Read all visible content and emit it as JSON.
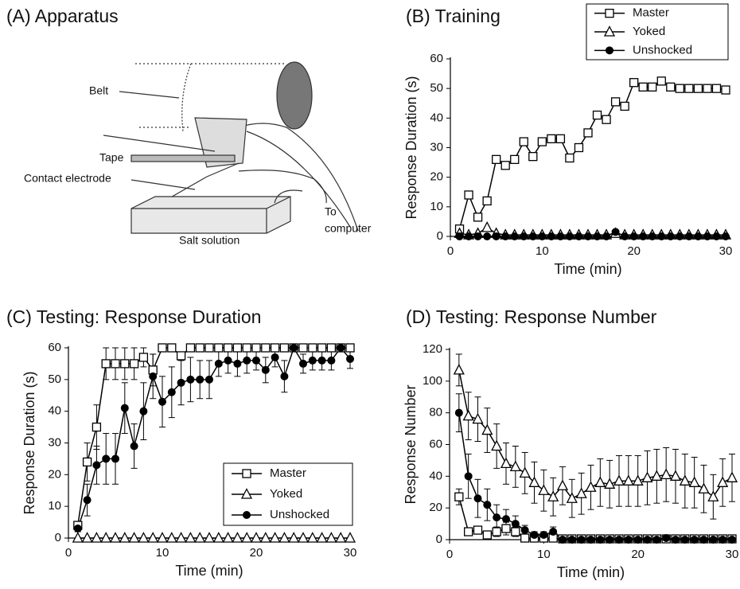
{
  "diagram": {
    "title": "(A) Apparatus",
    "labels": [
      "Belt",
      "Tape",
      "Contact electrode",
      "To",
      "computer",
      "Salt solution"
    ]
  },
  "chart_data": [
    {
      "type": "line",
      "title": "(B) Training",
      "x_label": "Time (min)",
      "y_label": "Response Duration (s)",
      "x": [
        1,
        2,
        3,
        4,
        5,
        6,
        7,
        8,
        9,
        10,
        11,
        12,
        13,
        14,
        15,
        16,
        17,
        18,
        19,
        20,
        21,
        22,
        23,
        24,
        25,
        26,
        27,
        28,
        29,
        30
      ],
      "series": [
        {
          "name": "Master",
          "color": "#000000",
          "marker": "square",
          "values": [
            2.5,
            14,
            6.5,
            12,
            26,
            24,
            26,
            32,
            27,
            32,
            33,
            33,
            26.5,
            30,
            35,
            41,
            39.5,
            45.5,
            44,
            52,
            50.5,
            50.5,
            52.5,
            50.5,
            50,
            50,
            50,
            50,
            50,
            49.5
          ]
        },
        {
          "name": "Yoked",
          "color": "#000000",
          "marker": "triangle",
          "values": [
            1,
            0.5,
            1,
            3,
            1,
            0.5,
            0.5,
            0.5,
            0.5,
            0.5,
            0.5,
            0.5,
            0.5,
            0.5,
            0.5,
            0.5,
            0.5,
            1,
            0.5,
            0.5,
            0.5,
            0.5,
            0.5,
            0.5,
            0.5,
            0.5,
            0.5,
            0.5,
            0.5,
            0.5
          ]
        },
        {
          "name": "Unshocked",
          "color": "#000000",
          "marker": "circle",
          "values": [
            0,
            0,
            0,
            0,
            0,
            0,
            0,
            0,
            0,
            0,
            0,
            0,
            0,
            0,
            0,
            0,
            0,
            1.5,
            0,
            0,
            0,
            0,
            0,
            0,
            0,
            0,
            0,
            0,
            0,
            0
          ]
        }
      ],
      "xlim": [
        0,
        30
      ],
      "xticks": [
        0,
        10,
        20,
        30
      ],
      "ylim": [
        0,
        60
      ],
      "yticks": [
        0,
        10,
        20,
        30,
        40,
        50,
        60
      ],
      "grid": false,
      "legend": "upper right"
    },
    {
      "type": "line",
      "title": "(C) Testing: Response Duration",
      "x_label": "Time (min)",
      "y_label": "Response Duration (s)",
      "x": [
        1,
        2,
        3,
        4,
        5,
        6,
        7,
        8,
        9,
        10,
        11,
        12,
        13,
        14,
        15,
        16,
        17,
        18,
        19,
        20,
        21,
        22,
        23,
        24,
        25,
        26,
        27,
        28,
        29,
        30
      ],
      "series": [
        {
          "name": "Master",
          "color": "#000000",
          "marker": "square",
          "values": [
            4,
            24,
            35,
            55,
            55,
            55,
            55,
            57,
            53,
            60,
            60,
            57.5,
            60,
            60,
            60,
            60,
            60,
            60,
            60,
            60,
            60,
            60,
            60,
            60,
            60,
            60,
            60,
            60,
            60,
            60
          ],
          "errors": [
            1,
            6,
            7,
            5,
            5,
            5,
            5,
            3,
            5,
            0,
            0,
            0,
            0,
            0,
            0,
            0,
            0,
            0,
            0,
            0,
            0,
            0,
            0,
            0,
            0,
            0,
            0,
            0,
            0,
            0
          ]
        },
        {
          "name": "Yoked",
          "color": "#000000",
          "marker": "triangle",
          "values": [
            0,
            0,
            0,
            0,
            0,
            0,
            0,
            0,
            0,
            0,
            0,
            0,
            0,
            0,
            0,
            0,
            0,
            0,
            0,
            0,
            0,
            0,
            0,
            0,
            0,
            0,
            0,
            0,
            0,
            0
          ],
          "errors": [
            0,
            0,
            0,
            0,
            0,
            0,
            0,
            0,
            0,
            0,
            0,
            0,
            0,
            0,
            0,
            0,
            0,
            0,
            0,
            0,
            0,
            0,
            0,
            0,
            0,
            0,
            0,
            0,
            0,
            0
          ]
        },
        {
          "name": "Unshocked",
          "color": "#000000",
          "marker": "circle",
          "values": [
            3,
            12,
            23,
            25,
            25,
            41,
            29,
            40,
            51,
            43,
            46,
            49,
            50,
            50,
            50,
            55,
            56,
            55,
            56,
            56,
            53,
            57,
            51,
            60,
            55,
            56,
            56,
            56,
            60,
            56.5
          ],
          "errors": [
            1,
            5,
            6,
            8,
            8,
            8,
            7,
            9,
            7,
            8,
            8,
            7,
            7,
            6,
            6,
            4,
            4,
            4,
            4,
            3,
            4,
            3,
            5,
            0,
            3,
            3,
            3,
            3,
            0,
            3
          ]
        }
      ],
      "xlim": [
        0,
        30
      ],
      "xticks": [
        0,
        10,
        20,
        30
      ],
      "ylim": [
        0,
        60
      ],
      "yticks": [
        0,
        10,
        20,
        30,
        40,
        50,
        60
      ],
      "grid": false,
      "legend": "lower right"
    },
    {
      "type": "line",
      "title": "(D) Testing: Response Number",
      "x_label": "Time (min)",
      "y_label": "Response Number",
      "x": [
        1,
        2,
        3,
        4,
        5,
        6,
        7,
        8,
        9,
        10,
        11,
        12,
        13,
        14,
        15,
        16,
        17,
        18,
        19,
        20,
        21,
        22,
        23,
        24,
        25,
        26,
        27,
        28,
        29,
        30
      ],
      "series": [
        {
          "color": "#000000",
          "marker": "square",
          "values": [
            27,
            5,
            6,
            3,
            5,
            7,
            5,
            1,
            1,
            1,
            1,
            0.5,
            0.5,
            0.5,
            0.5,
            0.5,
            0.5,
            0.5,
            0.5,
            0.5,
            0.5,
            0.5,
            0.5,
            0.5,
            0.5,
            0.5,
            0.5,
            0.5,
            0.5,
            0.5
          ],
          "errors": [
            5,
            2,
            2,
            2,
            3,
            4,
            3,
            0,
            0,
            0,
            0,
            0,
            0,
            0,
            0,
            0,
            0,
            0,
            0,
            0,
            0,
            0,
            0,
            0,
            0,
            0,
            0,
            0,
            0,
            0
          ]
        },
        {
          "color": "#000000",
          "marker": "triangle",
          "values": [
            107,
            78,
            76,
            69,
            59,
            48,
            46,
            42,
            36,
            31,
            27,
            34,
            26,
            29,
            33,
            36,
            35,
            37,
            37,
            37,
            39,
            40,
            41,
            40,
            37,
            36,
            32,
            27,
            36,
            39
          ],
          "errors": [
            10,
            15,
            14,
            14,
            14,
            13,
            13,
            13,
            13,
            13,
            12,
            12,
            12,
            13,
            14,
            15,
            15,
            16,
            16,
            16,
            17,
            17,
            17,
            17,
            17,
            16,
            15,
            14,
            15,
            15
          ]
        },
        {
          "color": "#000000",
          "marker": "circle",
          "values": [
            80,
            40,
            26,
            22,
            14,
            13,
            10,
            6,
            3,
            3,
            5,
            0,
            0,
            0,
            0,
            0,
            0,
            0,
            0,
            0,
            0,
            0,
            1,
            0,
            0,
            0,
            0,
            0,
            0,
            0
          ],
          "errors": [
            12,
            14,
            12,
            10,
            8,
            6,
            5,
            3,
            2,
            2,
            3,
            0,
            0,
            0,
            0,
            0,
            0,
            0,
            0,
            0,
            0,
            0,
            0,
            0,
            0,
            0,
            0,
            0,
            0,
            0
          ]
        }
      ],
      "xlim": [
        0,
        30
      ],
      "xticks": [
        0,
        10,
        20,
        30
      ],
      "ylim": [
        0,
        120
      ],
      "yticks": [
        0,
        20,
        40,
        60,
        80,
        100,
        120
      ],
      "grid": false
    }
  ]
}
